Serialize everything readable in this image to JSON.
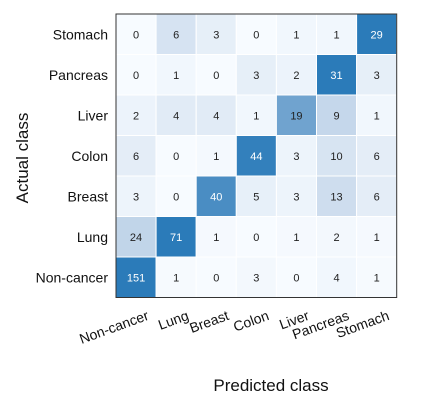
{
  "chart_data": {
    "type": "heatmap",
    "xlabel": "Predicted class",
    "ylabel": "Actual class",
    "x_categories": [
      "Non-cancer",
      "Lung",
      "Breast",
      "Colon",
      "Liver",
      "Pancreas",
      "Stomach"
    ],
    "y_categories": [
      "Stomach",
      "Pancreas",
      "Liver",
      "Colon",
      "Breast",
      "Lung",
      "Non-cancer"
    ],
    "values": [
      [
        0,
        6,
        3,
        0,
        1,
        1,
        29
      ],
      [
        0,
        1,
        0,
        3,
        2,
        31,
        3
      ],
      [
        2,
        4,
        4,
        1,
        19,
        9,
        1
      ],
      [
        6,
        0,
        1,
        44,
        3,
        10,
        6
      ],
      [
        3,
        0,
        40,
        5,
        3,
        13,
        6
      ],
      [
        24,
        71,
        1,
        0,
        1,
        2,
        1
      ],
      [
        151,
        1,
        0,
        3,
        0,
        4,
        1
      ]
    ],
    "colors": {
      "low": "#f7fbff",
      "mid": "#b4cbe4",
      "high": "#2b7bb9",
      "text_dark": "#222222",
      "text_light": "#ffffff"
    },
    "grid": true,
    "legend": false
  }
}
